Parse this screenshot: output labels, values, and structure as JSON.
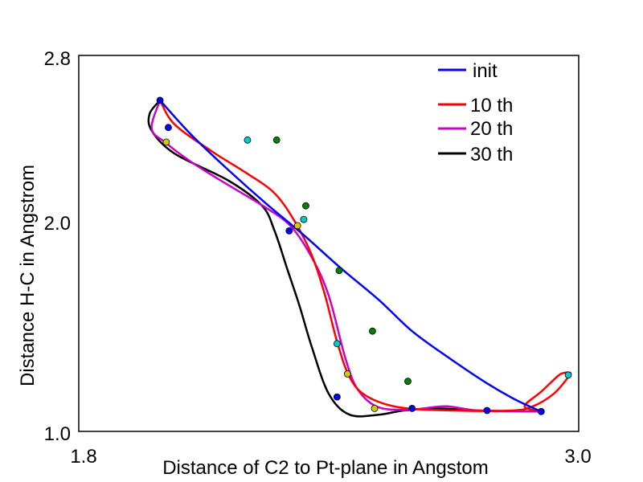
{
  "chart_data": {
    "type": "line",
    "title": "",
    "xlabel": "Distance of C2 to Pt-plane in Angstom",
    "ylabel": "Distance H-C in Angstrom",
    "xlim": [
      1.8,
      3.0
    ],
    "ylim": [
      1.0,
      2.8
    ],
    "x_tick_labels": [
      "1.8",
      "3.0"
    ],
    "y_tick_labels": [
      "1.0",
      "2.0",
      "2.8"
    ],
    "grid": false,
    "legend_position": "top-right",
    "series": [
      {
        "name": "init",
        "color": "#0000ff",
        "marker_color": "#008000",
        "curve": [
          [
            1.995,
            2.585
          ],
          [
            2.07,
            2.42
          ],
          [
            2.16,
            2.25
          ],
          [
            2.25,
            2.09
          ],
          [
            2.34,
            1.94
          ],
          [
            2.43,
            1.78
          ],
          [
            2.52,
            1.63
          ],
          [
            2.6,
            1.48
          ],
          [
            2.69,
            1.35
          ],
          [
            2.78,
            1.23
          ],
          [
            2.85,
            1.15
          ],
          [
            2.91,
            1.095
          ]
        ],
        "markers": [
          [
            2.275,
            2.395
          ],
          [
            2.345,
            2.08
          ],
          [
            2.425,
            1.77
          ],
          [
            2.505,
            1.48
          ],
          [
            2.59,
            1.24
          ]
        ],
        "endpoint_markers": [
          [
            1.995,
            2.585
          ],
          [
            2.91,
            1.095
          ]
        ]
      },
      {
        "name": "10 th",
        "color": "#ff0000",
        "marker_color": "#00cccc",
        "curve": [
          [
            1.995,
            2.585
          ],
          [
            2.03,
            2.47
          ],
          [
            2.12,
            2.34
          ],
          [
            2.2,
            2.24
          ],
          [
            2.27,
            2.14
          ],
          [
            2.32,
            2.0
          ],
          [
            2.36,
            1.84
          ],
          [
            2.39,
            1.66
          ],
          [
            2.42,
            1.43
          ],
          [
            2.45,
            1.26
          ],
          [
            2.49,
            1.17
          ],
          [
            2.57,
            1.115
          ],
          [
            2.7,
            1.1
          ],
          [
            2.84,
            1.1
          ],
          [
            2.89,
            1.12
          ],
          [
            2.94,
            1.18
          ],
          [
            2.975,
            1.26
          ],
          [
            2.98,
            1.28
          ],
          [
            2.965,
            1.28
          ],
          [
            2.95,
            1.265
          ],
          [
            2.91,
            1.19
          ],
          [
            2.87,
            1.12
          ],
          [
            2.91,
            1.095
          ]
        ],
        "markers": [
          [
            2.205,
            2.395
          ],
          [
            2.34,
            2.015
          ],
          [
            2.42,
            1.42
          ],
          [
            2.975,
            1.27
          ]
        ],
        "endpoint_markers": []
      },
      {
        "name": "20 th",
        "color": "#cc00cc",
        "marker_color": "#cccc00",
        "curve": [
          [
            1.995,
            2.585
          ],
          [
            1.975,
            2.45
          ],
          [
            2.01,
            2.38
          ],
          [
            2.07,
            2.29
          ],
          [
            2.15,
            2.19
          ],
          [
            2.25,
            2.07
          ],
          [
            2.31,
            1.98
          ],
          [
            2.36,
            1.83
          ],
          [
            2.4,
            1.65
          ],
          [
            2.44,
            1.35
          ],
          [
            2.47,
            1.2
          ],
          [
            2.52,
            1.115
          ],
          [
            2.6,
            1.105
          ],
          [
            2.68,
            1.12
          ],
          [
            2.76,
            1.1
          ],
          [
            2.91,
            1.095
          ]
        ],
        "markers": [
          [
            2.01,
            2.385
          ],
          [
            2.325,
            1.985
          ],
          [
            2.445,
            1.275
          ],
          [
            2.51,
            1.11
          ]
        ],
        "endpoint_markers": []
      },
      {
        "name": "30 th",
        "color": "#000000",
        "marker_color": "#0000ff",
        "curve": [
          [
            1.995,
            2.585
          ],
          [
            1.97,
            2.52
          ],
          [
            1.975,
            2.44
          ],
          [
            2.03,
            2.33
          ],
          [
            2.16,
            2.2
          ],
          [
            2.24,
            2.08
          ],
          [
            2.27,
            1.96
          ],
          [
            2.3,
            1.78
          ],
          [
            2.33,
            1.6
          ],
          [
            2.36,
            1.4
          ],
          [
            2.4,
            1.18
          ],
          [
            2.45,
            1.08
          ],
          [
            2.52,
            1.08
          ],
          [
            2.58,
            1.1
          ],
          [
            2.66,
            1.11
          ],
          [
            2.76,
            1.1
          ],
          [
            2.91,
            1.095
          ]
        ],
        "markers": [
          [
            2.015,
            2.455
          ],
          [
            2.305,
            1.96
          ],
          [
            2.42,
            1.165
          ],
          [
            2.6,
            1.11
          ],
          [
            2.78,
            1.1
          ]
        ],
        "endpoint_markers": []
      }
    ]
  }
}
